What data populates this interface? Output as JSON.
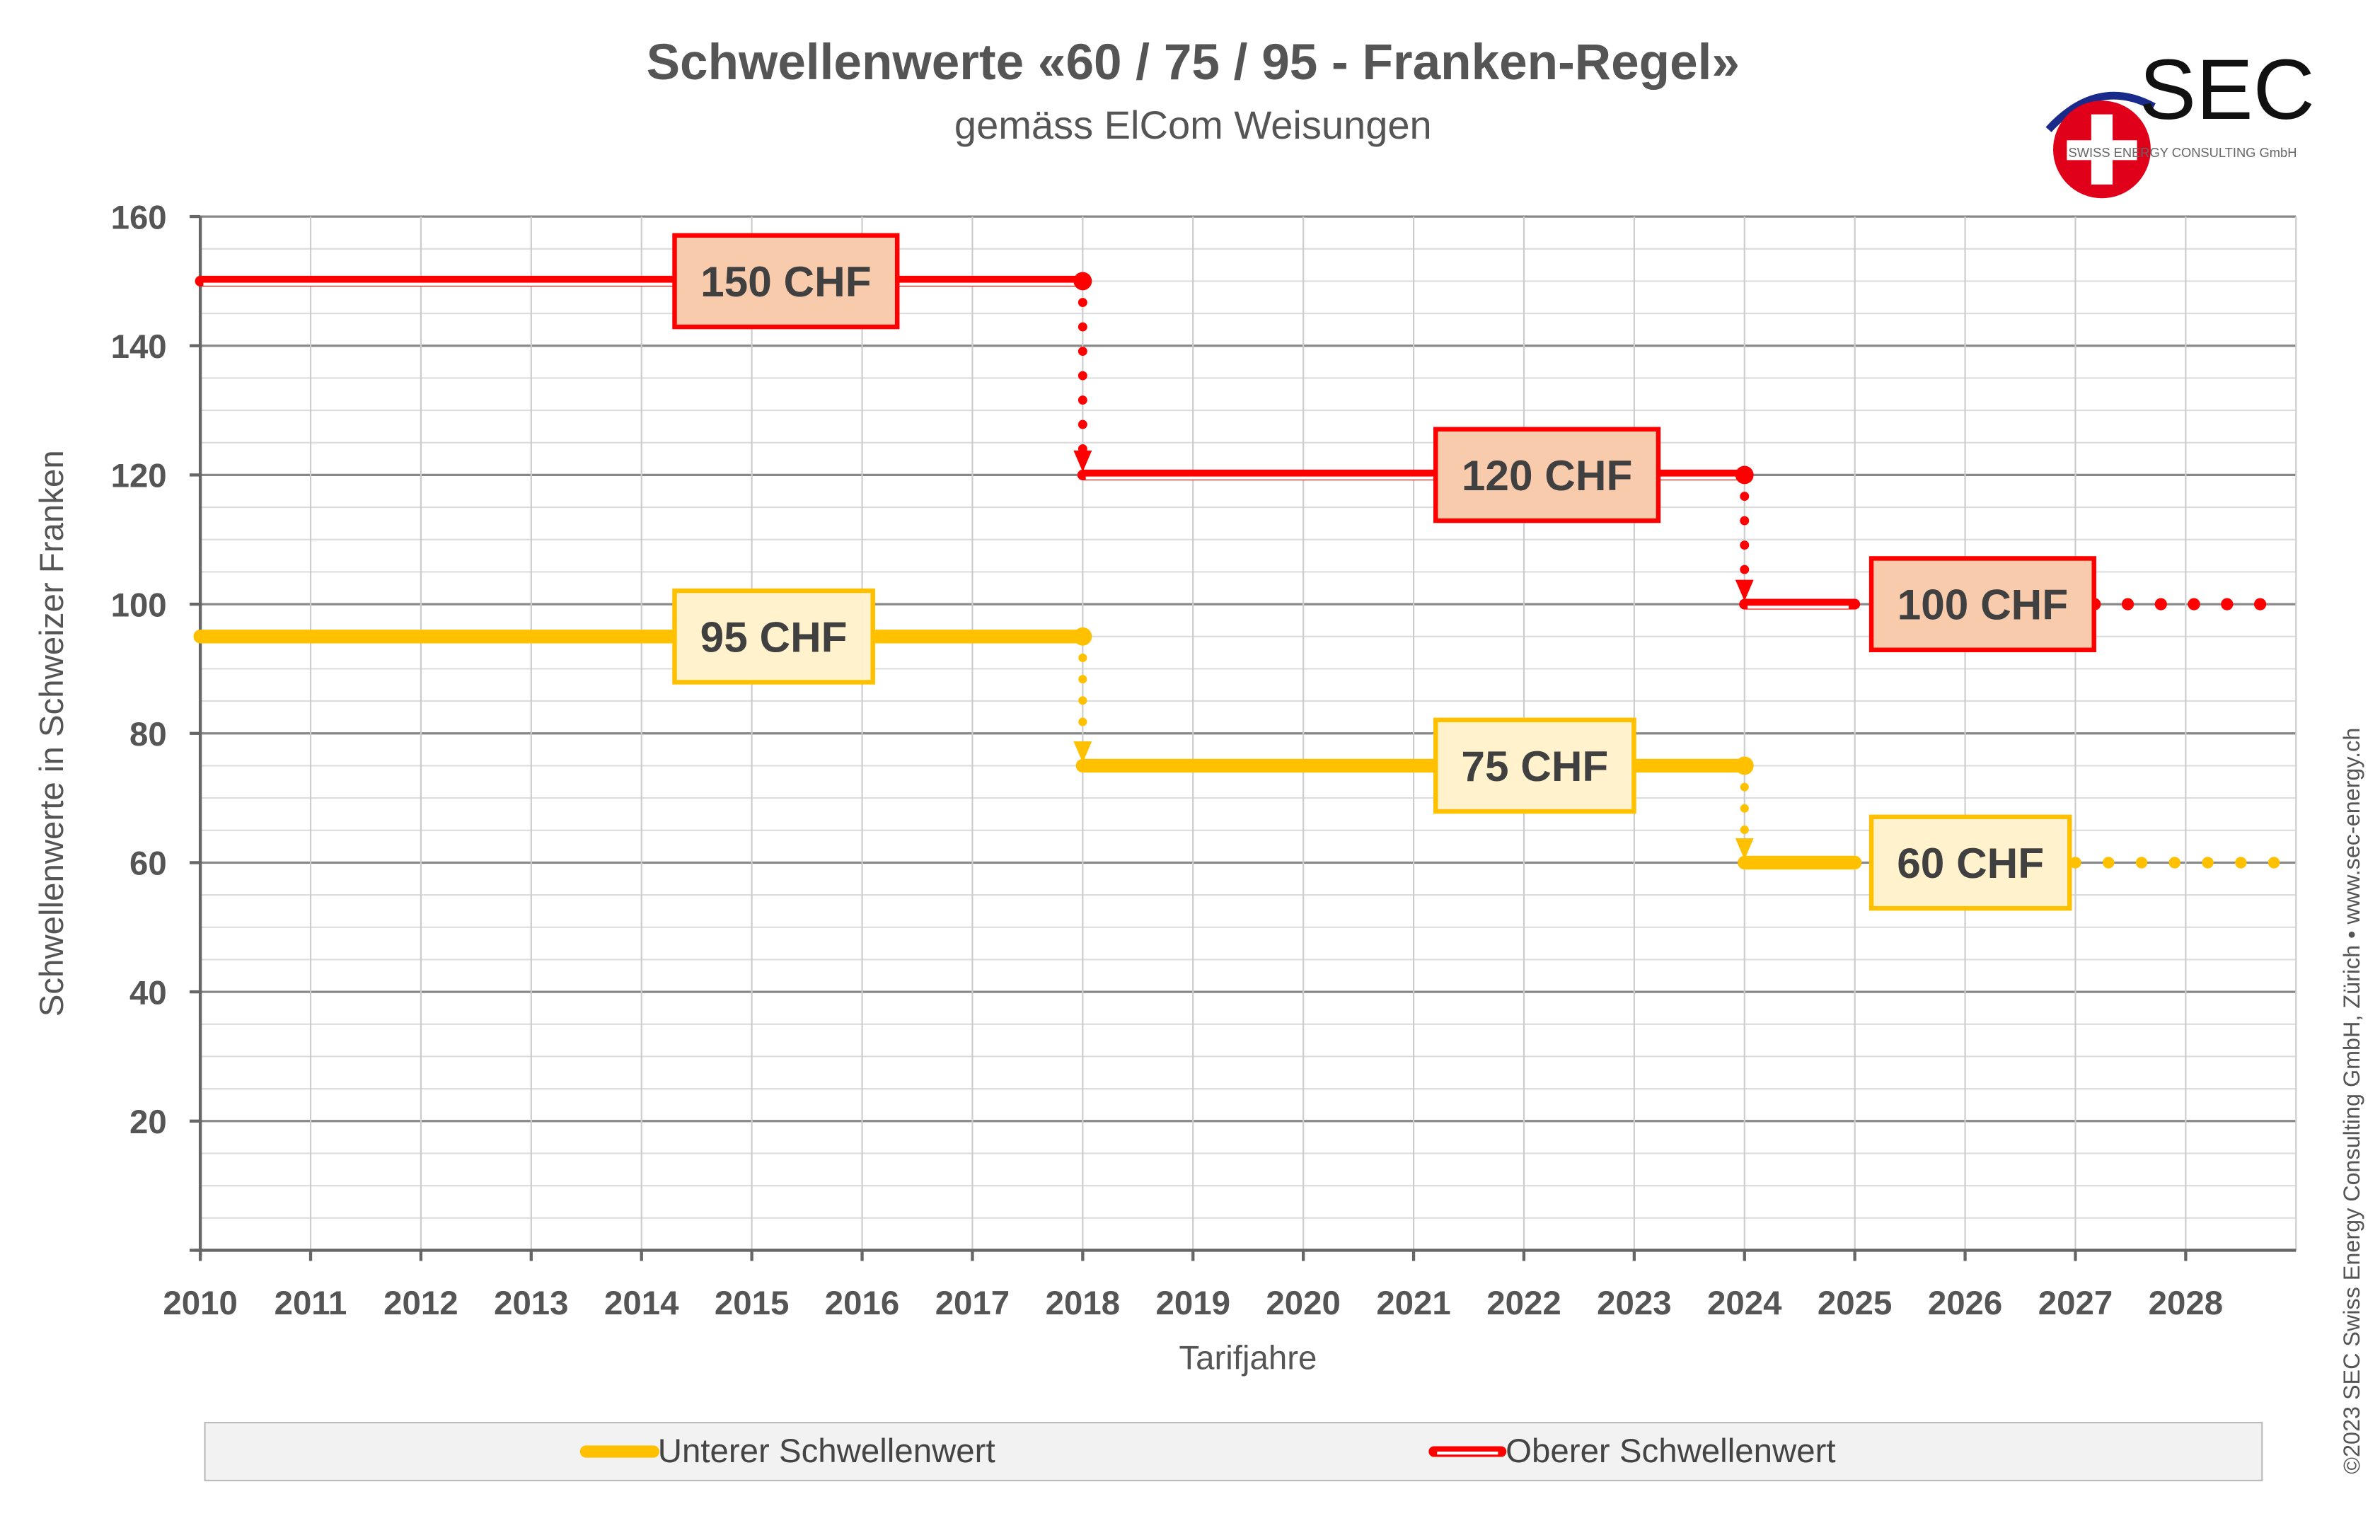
{
  "chart_data": {
    "type": "line",
    "title": "Schwellenwerte «60 / 75 / 95 - Franken-Regel»",
    "subtitle": "gemäss ElCom Weisungen",
    "xlabel": "Tarifjahre",
    "ylabel": "Schwellenwerte in Schweizer Franken",
    "xlim": [
      2010,
      2029
    ],
    "ylim": [
      0,
      160
    ],
    "x_ticks": [
      "2010",
      "2011",
      "2012",
      "2013",
      "2014",
      "2015",
      "2016",
      "2017",
      "2018",
      "2019",
      "2020",
      "2021",
      "2022",
      "2023",
      "2024",
      "2025",
      "2026",
      "2027",
      "2028"
    ],
    "y_ticks": [
      "20",
      "40",
      "60",
      "80",
      "100",
      "120",
      "140",
      "160"
    ],
    "grid": true,
    "legend_position": "bottom",
    "series": [
      {
        "name": "Unterer Schwellenwert",
        "color": "#FFC000",
        "label_fill": "#FFF2CC",
        "steps": [
          {
            "from": 2010,
            "to": 2018,
            "value": 95,
            "label": "95 CHF"
          },
          {
            "from": 2018,
            "to": 2024,
            "value": 75,
            "label": "75 CHF"
          },
          {
            "from": 2024,
            "to": 2025,
            "value": 60,
            "label": "60 CHF"
          }
        ],
        "projection": {
          "from": 2025,
          "to": 2029,
          "value": 60
        }
      },
      {
        "name": "Oberer Schwellenwert",
        "color": "#FF0000",
        "label_fill": "#F8CBAD",
        "steps": [
          {
            "from": 2010,
            "to": 2018,
            "value": 150,
            "label": "150 CHF"
          },
          {
            "from": 2018,
            "to": 2024,
            "value": 120,
            "label": "120 CHF"
          },
          {
            "from": 2024,
            "to": 2025,
            "value": 100,
            "label": "100 CHF"
          }
        ],
        "projection": {
          "from": 2025,
          "to": 2029,
          "value": 100
        }
      }
    ]
  },
  "logo": {
    "text": "SEC",
    "tagline": "SWISS ENERGY CONSULTING GmbH"
  },
  "copyright": "©2023 SEC Swiss Energy Consulting GmbH, Zürich • www.sec-energy.ch"
}
